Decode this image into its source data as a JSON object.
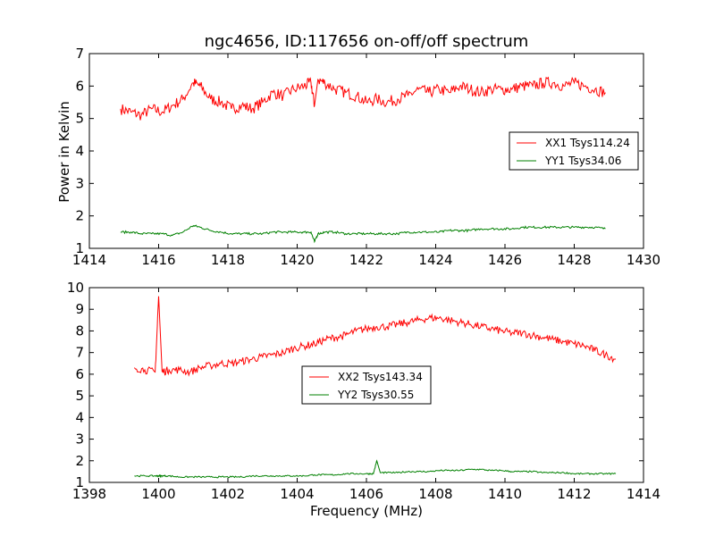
{
  "title": "ngc4656, ID:117656 on-off/off spectrum",
  "chart_data": [
    {
      "type": "line",
      "title": "ngc4656, ID:117656 on-off/off spectrum",
      "xlabel": "",
      "ylabel": "Power in Kelvin",
      "xlim": [
        1414,
        1430
      ],
      "ylim": [
        1,
        7
      ],
      "xticks": [
        1414,
        1416,
        1418,
        1420,
        1422,
        1424,
        1426,
        1428,
        1430
      ],
      "yticks": [
        1,
        2,
        3,
        4,
        5,
        6,
        7
      ],
      "legend_position": "center-right",
      "grid": false,
      "series": [
        {
          "name": "XX1 Tsys114.24",
          "color": "#ff0000",
          "x": [
            1414.9,
            1415.2,
            1415.5,
            1415.8,
            1416.1,
            1416.4,
            1416.7,
            1417.0,
            1417.2,
            1417.5,
            1417.8,
            1418.1,
            1418.4,
            1418.7,
            1419.0,
            1419.3,
            1419.6,
            1419.9,
            1420.2,
            1420.4,
            1420.5,
            1420.6,
            1420.8,
            1421.1,
            1421.4,
            1421.7,
            1422.0,
            1422.3,
            1422.6,
            1422.9,
            1423.2,
            1423.5,
            1423.8,
            1424.1,
            1424.4,
            1424.7,
            1425.0,
            1425.3,
            1425.6,
            1425.9,
            1426.2,
            1426.5,
            1426.8,
            1427.1,
            1427.4,
            1427.7,
            1428.0,
            1428.3,
            1428.6,
            1428.9
          ],
          "y": [
            5.3,
            5.2,
            5.1,
            5.3,
            5.2,
            5.4,
            5.6,
            6.1,
            6.0,
            5.6,
            5.5,
            5.3,
            5.4,
            5.3,
            5.5,
            5.8,
            5.7,
            5.9,
            6.0,
            6.1,
            5.4,
            6.2,
            6.1,
            5.9,
            5.8,
            5.7,
            5.5,
            5.6,
            5.5,
            5.6,
            5.7,
            5.9,
            5.8,
            5.9,
            5.8,
            6.0,
            5.9,
            5.8,
            5.9,
            5.9,
            5.9,
            6.0,
            6.0,
            6.1,
            6.1,
            6.0,
            6.1,
            6.0,
            5.9,
            5.8
          ]
        },
        {
          "name": "YY1 Tsys34.06",
          "color": "#008000",
          "x": [
            1414.9,
            1415.2,
            1415.5,
            1415.8,
            1416.1,
            1416.4,
            1416.7,
            1417.0,
            1417.2,
            1417.5,
            1417.8,
            1418.1,
            1418.4,
            1418.7,
            1419.0,
            1419.3,
            1419.6,
            1419.9,
            1420.2,
            1420.4,
            1420.5,
            1420.6,
            1420.8,
            1421.1,
            1421.4,
            1421.7,
            1422.0,
            1422.3,
            1422.6,
            1422.9,
            1423.2,
            1423.5,
            1423.8,
            1424.1,
            1424.4,
            1424.7,
            1425.0,
            1425.3,
            1425.6,
            1425.9,
            1426.2,
            1426.5,
            1426.8,
            1427.1,
            1427.4,
            1427.7,
            1428.0,
            1428.3,
            1428.6,
            1428.9
          ],
          "y": [
            1.5,
            1.5,
            1.45,
            1.45,
            1.45,
            1.4,
            1.5,
            1.7,
            1.65,
            1.55,
            1.5,
            1.45,
            1.45,
            1.45,
            1.45,
            1.5,
            1.5,
            1.5,
            1.5,
            1.5,
            1.2,
            1.45,
            1.5,
            1.5,
            1.45,
            1.45,
            1.45,
            1.45,
            1.45,
            1.45,
            1.5,
            1.5,
            1.5,
            1.5,
            1.55,
            1.55,
            1.55,
            1.6,
            1.6,
            1.6,
            1.6,
            1.65,
            1.65,
            1.65,
            1.65,
            1.65,
            1.65,
            1.65,
            1.65,
            1.6
          ]
        }
      ]
    },
    {
      "type": "line",
      "title": "",
      "xlabel": "Frequency (MHz)",
      "ylabel": "",
      "xlim": [
        1398,
        1414
      ],
      "ylim": [
        1,
        10
      ],
      "xticks": [
        1398,
        1400,
        1402,
        1404,
        1406,
        1408,
        1410,
        1412,
        1414
      ],
      "yticks": [
        1,
        2,
        3,
        4,
        5,
        6,
        7,
        8,
        9,
        10
      ],
      "legend_position": "center",
      "grid": false,
      "series": [
        {
          "name": "XX2 Tsys143.34",
          "color": "#ff0000",
          "x": [
            1399.3,
            1399.6,
            1399.9,
            1400.0,
            1400.1,
            1400.3,
            1400.6,
            1400.9,
            1401.2,
            1401.5,
            1401.8,
            1402.1,
            1402.4,
            1402.7,
            1403.0,
            1403.3,
            1403.6,
            1403.9,
            1404.2,
            1404.5,
            1404.8,
            1405.1,
            1405.4,
            1405.7,
            1406.0,
            1406.3,
            1406.6,
            1406.9,
            1407.2,
            1407.5,
            1407.8,
            1408.1,
            1408.4,
            1408.7,
            1409.0,
            1409.3,
            1409.6,
            1409.9,
            1410.2,
            1410.5,
            1410.8,
            1411.1,
            1411.4,
            1411.7,
            1412.0,
            1412.3,
            1412.6,
            1412.9,
            1413.2
          ],
          "y": [
            6.3,
            6.2,
            6.1,
            9.6,
            6.1,
            6.2,
            6.2,
            6.1,
            6.3,
            6.4,
            6.5,
            6.5,
            6.6,
            6.7,
            6.8,
            6.9,
            7.0,
            7.2,
            7.3,
            7.4,
            7.6,
            7.7,
            7.8,
            8.0,
            8.1,
            8.2,
            8.2,
            8.3,
            8.4,
            8.5,
            8.6,
            8.6,
            8.5,
            8.4,
            8.3,
            8.2,
            8.1,
            8.0,
            7.9,
            7.9,
            7.8,
            7.7,
            7.6,
            7.5,
            7.4,
            7.3,
            7.1,
            6.9,
            6.7
          ]
        },
        {
          "name": "YY2 Tsys30.55",
          "color": "#008000",
          "x": [
            1399.3,
            1399.6,
            1399.9,
            1400.0,
            1400.1,
            1400.3,
            1400.6,
            1400.9,
            1401.2,
            1401.5,
            1401.8,
            1402.1,
            1402.4,
            1402.7,
            1403.0,
            1403.3,
            1403.6,
            1403.9,
            1404.2,
            1404.5,
            1404.8,
            1405.1,
            1405.4,
            1405.7,
            1406.0,
            1406.2,
            1406.3,
            1406.4,
            1406.6,
            1406.9,
            1407.2,
            1407.5,
            1407.8,
            1408.1,
            1408.4,
            1408.7,
            1409.0,
            1409.3,
            1409.6,
            1409.9,
            1410.2,
            1410.5,
            1410.8,
            1411.1,
            1411.4,
            1411.7,
            1412.0,
            1412.3,
            1412.6,
            1412.9,
            1413.2
          ],
          "y": [
            1.3,
            1.3,
            1.3,
            1.3,
            1.3,
            1.3,
            1.25,
            1.25,
            1.25,
            1.25,
            1.25,
            1.25,
            1.25,
            1.3,
            1.3,
            1.3,
            1.3,
            1.3,
            1.3,
            1.35,
            1.35,
            1.35,
            1.4,
            1.4,
            1.4,
            1.4,
            2.0,
            1.45,
            1.45,
            1.45,
            1.5,
            1.5,
            1.5,
            1.55,
            1.55,
            1.55,
            1.6,
            1.6,
            1.55,
            1.55,
            1.5,
            1.5,
            1.5,
            1.45,
            1.45,
            1.45,
            1.4,
            1.4,
            1.4,
            1.4,
            1.4
          ]
        }
      ]
    }
  ]
}
